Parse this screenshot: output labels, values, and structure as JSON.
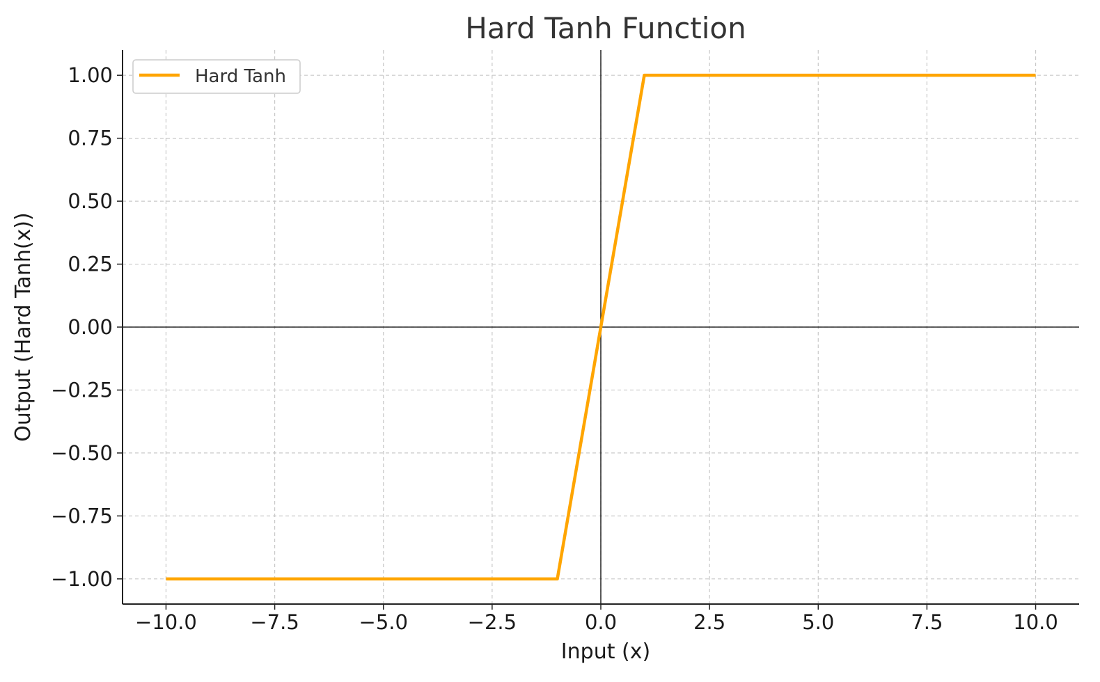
{
  "chart_data": {
    "type": "line",
    "title": "Hard Tanh Function",
    "xlabel": "Input (x)",
    "ylabel": "Output (Hard Tanh(x))",
    "xlim": [
      -11,
      11
    ],
    "ylim": [
      -1.1,
      1.1
    ],
    "xticks": [
      -10.0,
      -7.5,
      -5.0,
      -2.5,
      0.0,
      2.5,
      5.0,
      7.5,
      10.0
    ],
    "xtick_labels": [
      "−10.0",
      "−7.5",
      "−5.0",
      "−2.5",
      "0.0",
      "2.5",
      "5.0",
      "7.5",
      "10.0"
    ],
    "yticks": [
      1.0,
      0.75,
      0.5,
      0.25,
      0.0,
      -0.25,
      -0.5,
      -0.75,
      -1.0
    ],
    "ytick_labels": [
      "1.00",
      "0.75",
      "0.50",
      "0.25",
      "0.00",
      "−0.25",
      "−0.50",
      "−0.75",
      "−1.00"
    ],
    "grid": true,
    "legend_position": "top-left",
    "series": [
      {
        "name": "Hard Tanh",
        "color": "#FFA500",
        "x": [
          -10,
          -1,
          1,
          10
        ],
        "y": [
          -1,
          -1,
          1,
          1
        ]
      }
    ]
  }
}
